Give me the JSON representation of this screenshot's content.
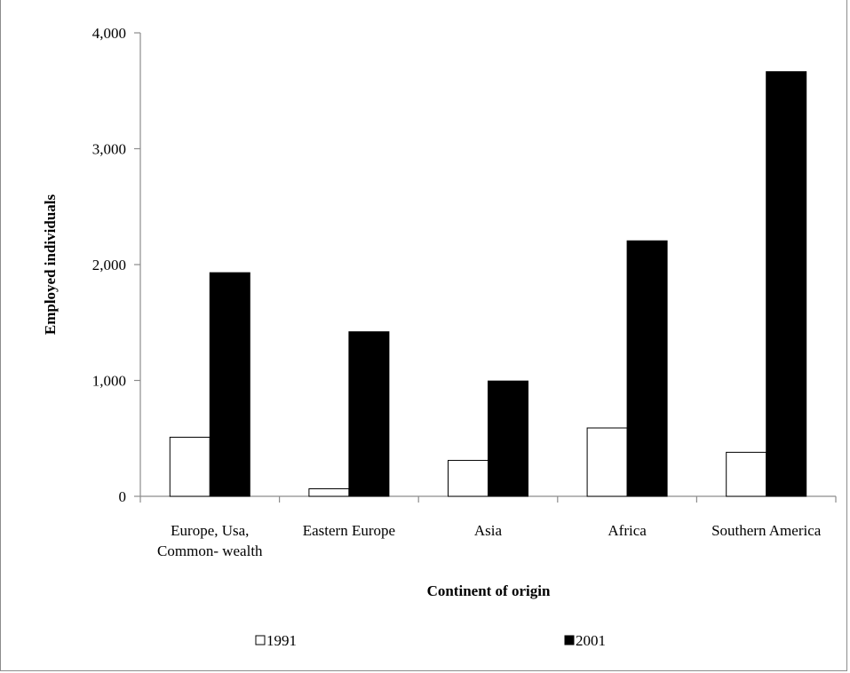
{
  "chart_data": {
    "type": "bar",
    "xlabel": "Continent of origin",
    "ylabel": "Employed individuals",
    "ylim": [
      0,
      4000
    ],
    "yticks": [
      0,
      1000,
      2000,
      3000,
      4000
    ],
    "ytick_labels": [
      "0",
      "1,000",
      "2,000",
      "3,000",
      "4,000"
    ],
    "categories": [
      [
        "Europe, Usa,",
        "Common- wealth"
      ],
      [
        "Eastern Europe"
      ],
      [
        "Asia"
      ],
      [
        "Africa"
      ],
      [
        "Southern America"
      ]
    ],
    "series": [
      {
        "name": "1991",
        "values": [
          510,
          65,
          310,
          590,
          380
        ],
        "color": "#ffffff"
      },
      {
        "name": "2001",
        "values": [
          1930,
          1420,
          995,
          2205,
          3665
        ],
        "color": "#000000"
      }
    ],
    "legend_position": "bottom",
    "grid": false
  }
}
